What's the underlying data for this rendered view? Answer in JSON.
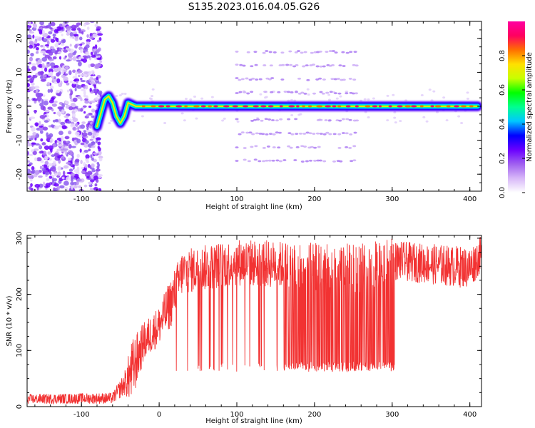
{
  "title": "S135.2023.016.04.05.G26",
  "colors": {
    "line": "#f23232",
    "colormap": [
      "#ffffff",
      "#d8b8f8",
      "#a060f0",
      "#6a00ff",
      "#0000ff",
      "#00c8ff",
      "#00ff90",
      "#00ff00",
      "#c8ff00",
      "#ffe000",
      "#ff7000",
      "#ff0060",
      "#ff00a0"
    ]
  },
  "chart_data": [
    {
      "type": "heatmap",
      "xlabel": "Height of straight line (km)",
      "ylabel": "Frequency (Hz)",
      "xlim": [
        -170,
        415
      ],
      "ylim": [
        -25,
        25
      ],
      "xticks": [
        -100,
        0,
        100,
        200,
        300,
        400
      ],
      "yticks": [
        -20,
        -10,
        0,
        10,
        20
      ],
      "colorbar": {
        "label": "Normalized spectral amplitude",
        "range": [
          0,
          1
        ],
        "ticks": [
          0.0,
          0.2,
          0.4,
          0.6,
          0.8
        ]
      },
      "ridge": {
        "description_of_data": "dominant frequency near 0 Hz",
        "points": [
          [
            -80,
            -6
          ],
          [
            -75,
            -2
          ],
          [
            -70,
            2
          ],
          [
            -65,
            3
          ],
          [
            -60,
            1
          ],
          [
            -55,
            -3
          ],
          [
            -50,
            -5
          ],
          [
            -45,
            -3
          ],
          [
            -40,
            1
          ],
          [
            -30,
            0
          ],
          [
            0,
            0
          ],
          [
            100,
            0
          ],
          [
            200,
            0
          ],
          [
            300,
            0
          ],
          [
            410,
            0
          ]
        ]
      },
      "harmonic_bands_hz": [
        16,
        12,
        8,
        4,
        -4,
        -8,
        -12,
        -16
      ],
      "harmonic_band_x_range": [
        100,
        255
      ]
    },
    {
      "type": "line",
      "xlabel": "Height of straight line (km)",
      "ylabel": "SNR (10 * v/v)",
      "xlim": [
        -170,
        415
      ],
      "ylim": [
        0,
        305
      ],
      "xticks": [
        -100,
        0,
        100,
        200,
        300,
        400
      ],
      "yticks": [
        0,
        100,
        200,
        300
      ],
      "envelope": [
        {
          "x": -170,
          "low": 5,
          "high": 22
        },
        {
          "x": -60,
          "low": 5,
          "high": 25
        },
        {
          "x": -45,
          "low": 20,
          "high": 60
        },
        {
          "x": -35,
          "low": 5,
          "high": 120
        },
        {
          "x": -20,
          "low": 80,
          "high": 150
        },
        {
          "x": 0,
          "low": 110,
          "high": 180
        },
        {
          "x": 15,
          "low": 140,
          "high": 230
        },
        {
          "x": 30,
          "low": 200,
          "high": 280
        },
        {
          "x": 100,
          "low": 215,
          "high": 300
        },
        {
          "x": 160,
          "low": 210,
          "high": 295
        },
        {
          "x": 250,
          "low": 200,
          "high": 290
        },
        {
          "x": 300,
          "low": 215,
          "high": 300
        },
        {
          "x": 305,
          "low": 225,
          "high": 295
        },
        {
          "x": 400,
          "low": 210,
          "high": 285
        },
        {
          "x": 415,
          "low": 240,
          "high": 305
        }
      ],
      "dropout_floor_range": [
        62,
        80
      ],
      "sparse_dropouts_x": [
        22,
        160
      ],
      "dense_dropouts_x": [
        160,
        303
      ]
    }
  ]
}
